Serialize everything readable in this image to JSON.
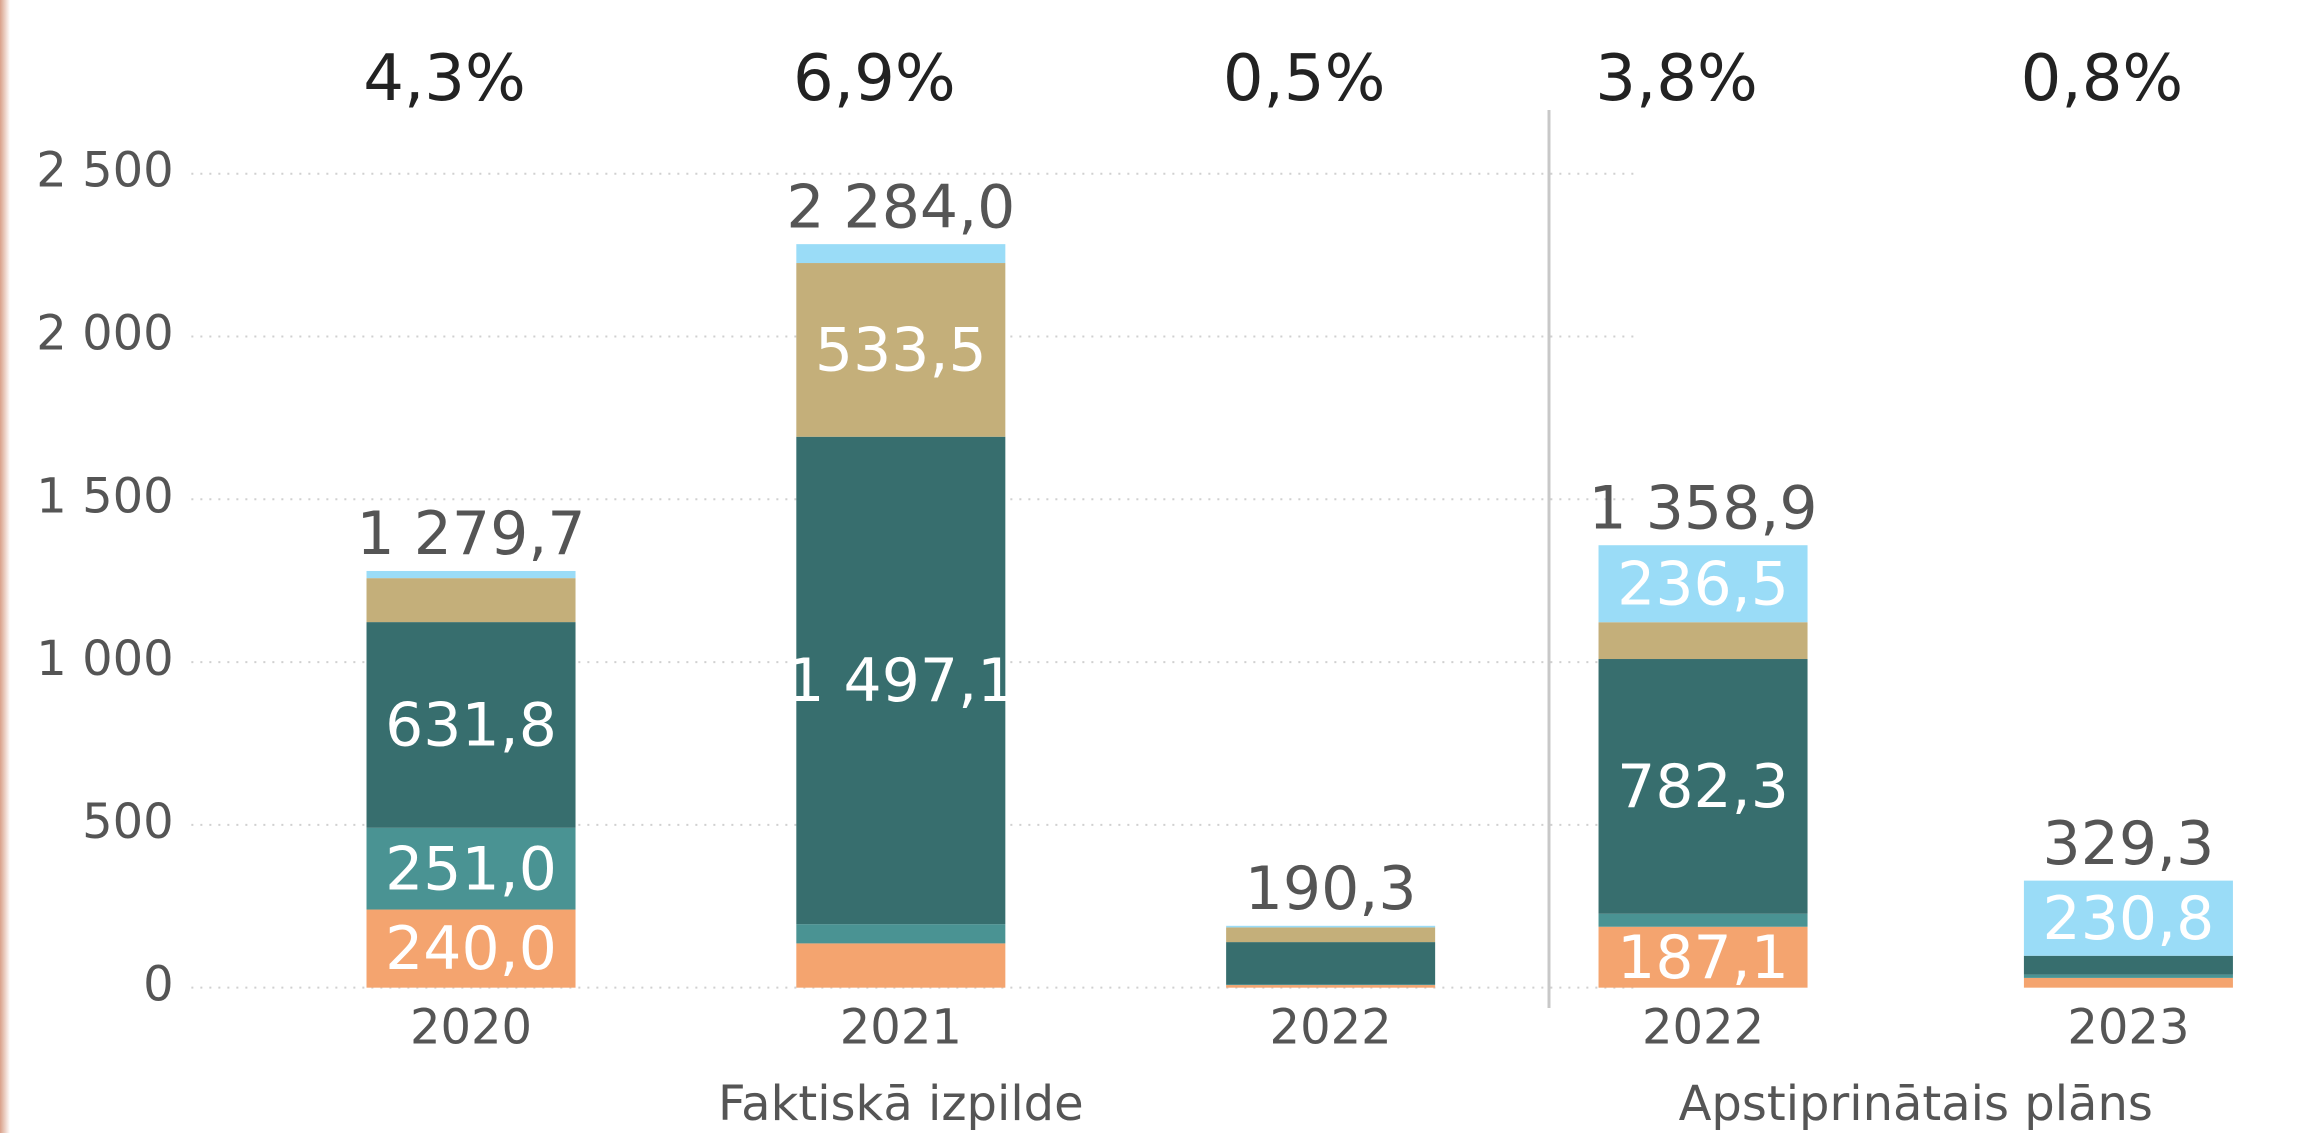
{
  "chart_data": {
    "type": "stacked_bar",
    "groups": [
      {
        "label": "Faktiskā izpilde",
        "categories": [
          "2020",
          "2021",
          "2022"
        ]
      },
      {
        "label": "Apstiprinātais plāns",
        "categories": [
          "2022",
          "2023"
        ]
      }
    ],
    "series": [
      {
        "color": "#f4a46f",
        "values": [
          240.0,
          136,
          8,
          187.1,
          30
        ],
        "value_labels": [
          "240,0",
          null,
          null,
          "187,1",
          null
        ]
      },
      {
        "color": "#4a9393",
        "values": [
          251.0,
          59,
          2,
          40,
          10
        ],
        "value_labels": [
          "251,0",
          null,
          null,
          null,
          null
        ]
      },
      {
        "color": "#376e6e",
        "values": [
          631.8,
          1497.1,
          130,
          782.3,
          58
        ],
        "value_labels": [
          "631,8",
          "1 497,1",
          null,
          "782,3",
          null
        ]
      },
      {
        "color": "#c4af7a",
        "values": [
          135,
          533.5,
          45,
          113,
          0
        ],
        "value_labels": [
          null,
          "533,5",
          null,
          null,
          null
        ]
      },
      {
        "color": "#9adcf7",
        "values": [
          22,
          58,
          5,
          236.5,
          230.8
        ],
        "value_labels": [
          null,
          null,
          null,
          "236,5",
          "230,8"
        ]
      }
    ],
    "totals": [
      1279.7,
      2284.0,
      190.3,
      1358.9,
      329.3
    ],
    "total_labels": [
      "1 279,7",
      "2 284,0",
      "190,3",
      "1 358,9",
      "329,3"
    ],
    "growth": [
      4.3,
      6.9,
      0.5,
      3.8,
      0.8
    ],
    "growth_labels": [
      "4,3%",
      "6,9%",
      "0,5%",
      "3,8%",
      "0,8%"
    ],
    "ylim": [
      0,
      2500
    ],
    "yticks": [
      0,
      500,
      {
        "value": 1000,
        "label": "1 000"
      },
      {
        "value": 1500,
        "label": "1 500"
      },
      {
        "value": 2000,
        "label": "2 000"
      },
      {
        "value": 2500,
        "label": "2 500"
      }
    ],
    "grid": true
  }
}
